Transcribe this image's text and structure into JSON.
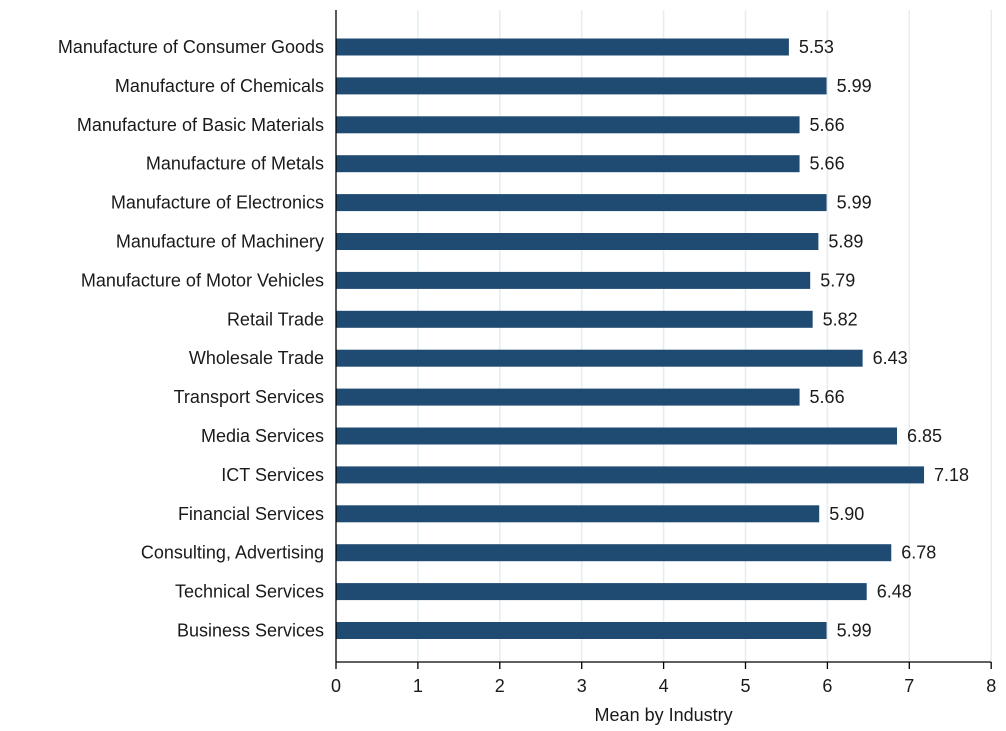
{
  "chart_data": {
    "type": "bar",
    "orientation": "horizontal",
    "categories": [
      "Manufacture of Consumer Goods",
      "Manufacture of Chemicals",
      "Manufacture of Basic Materials",
      "Manufacture of Metals",
      "Manufacture of Electronics",
      "Manufacture of Machinery",
      "Manufacture of Motor Vehicles",
      "Retail Trade",
      "Wholesale Trade",
      "Transport Services",
      "Media Services",
      "ICT Services",
      "Financial Services",
      "Consulting, Advertising",
      "Technical Services",
      "Business Services"
    ],
    "values": [
      5.53,
      5.99,
      5.66,
      5.66,
      5.99,
      5.89,
      5.79,
      5.82,
      6.43,
      5.66,
      6.85,
      7.18,
      5.9,
      6.78,
      6.48,
      5.99
    ],
    "value_labels": [
      "5.53",
      "5.99",
      "5.66",
      "5.66",
      "5.99",
      "5.89",
      "5.79",
      "5.82",
      "6.43",
      "5.66",
      "6.85",
      "7.18",
      "5.90",
      "6.78",
      "6.48",
      "5.99"
    ],
    "xlabel": "Mean by Industry",
    "ylabel": "",
    "title": "",
    "xlim": [
      0,
      8
    ],
    "xticks": [
      "0",
      "1",
      "2",
      "3",
      "4",
      "5",
      "6",
      "7",
      "8"
    ],
    "grid": "vertical",
    "legend": "none",
    "colors": {
      "bar": "#1f4b73",
      "grid": "#e3eef1",
      "axis": "#000000",
      "background": "#ffffff"
    }
  }
}
